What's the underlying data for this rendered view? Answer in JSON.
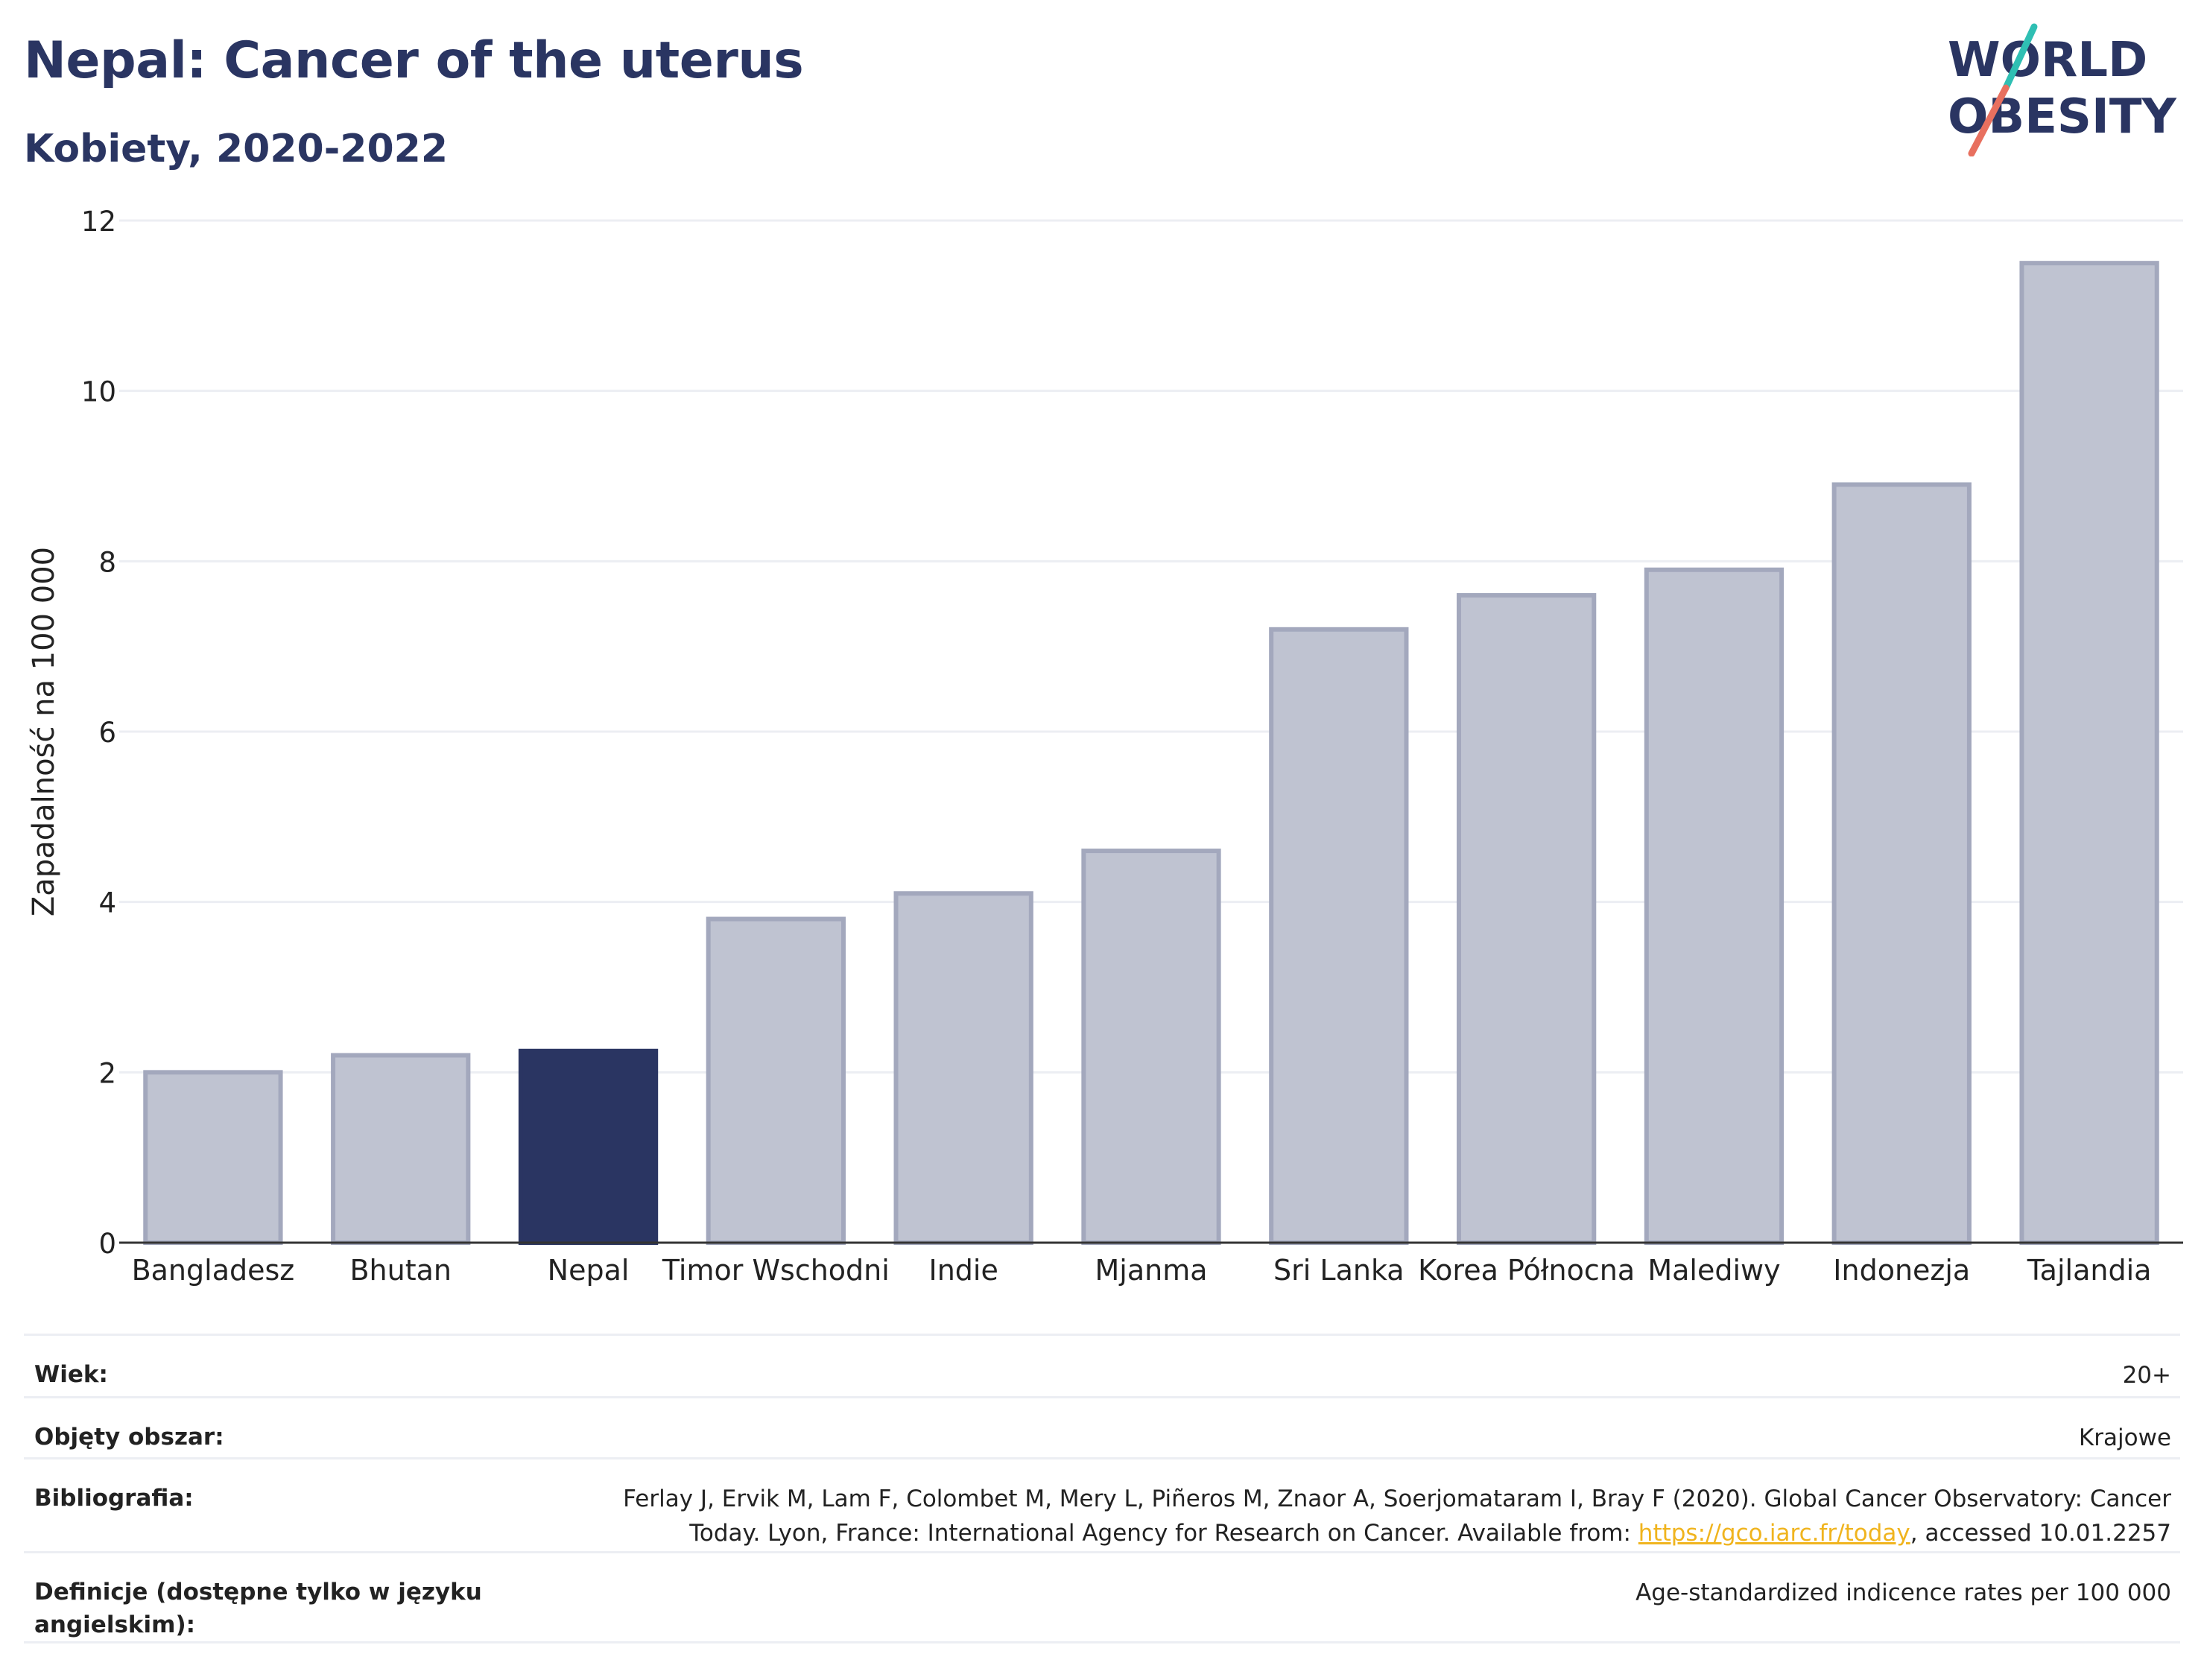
{
  "header": {
    "title": "Nepal: Cancer of the uterus",
    "subtitle": "Kobiety, 2020-2022"
  },
  "logo": {
    "line1": "WORLD",
    "line2": "OBESITY",
    "colors": {
      "text": "#2a3562",
      "slash_teal": "#2fbfb3",
      "slash_coral": "#e8705f"
    }
  },
  "chart_data": {
    "type": "bar",
    "title": "Nepal: Cancer of the uterus",
    "subtitle": "Kobiety, 2020-2022",
    "categories": [
      "Bangladesz",
      "Bhutan",
      "Nepal",
      "Timor Wschodni",
      "Indie",
      "Mjanma",
      "Sri Lanka",
      "Korea Północna",
      "Malediwy",
      "Indonezja",
      "Tajlandia"
    ],
    "values": [
      2.0,
      2.2,
      2.25,
      3.8,
      4.1,
      4.6,
      7.2,
      7.6,
      7.9,
      8.9,
      11.5
    ],
    "highlight": "Nepal",
    "ylabel": "Zapadalność na 100 000",
    "xlabel": "",
    "ylim": [
      0,
      12
    ],
    "yticks": [
      0,
      2,
      4,
      6,
      8,
      10,
      12
    ],
    "grid": true,
    "colors": {
      "bar": "#bfc3d1",
      "bar_border": "#a3a8bd",
      "highlight": "#2a3562",
      "grid": "#eceef3",
      "axis": "#333333"
    }
  },
  "metadata": [
    {
      "label": "Wiek:",
      "value": "20+"
    },
    {
      "label": "Objęty obszar:",
      "value": "Krajowe"
    },
    {
      "label": "Bibliografia:",
      "value_line1": "Ferlay J, Ervik M, Lam F, Colombet M, Mery L, Piñeros M, Znaor A, Soerjomataram I, Bray F (2020). Global Cancer Observatory: Cancer",
      "value_line2_pre": "Today. Lyon, France: International Agency for Research on Cancer. Available from: ",
      "link": "https://gco.iarc.fr/today",
      "value_line2_post": ", accessed 10.01.2257"
    },
    {
      "label": "Definicje (dostępne tylko w języku angielskim):",
      "value": "Age-standardized indicence rates per 100 000"
    }
  ]
}
